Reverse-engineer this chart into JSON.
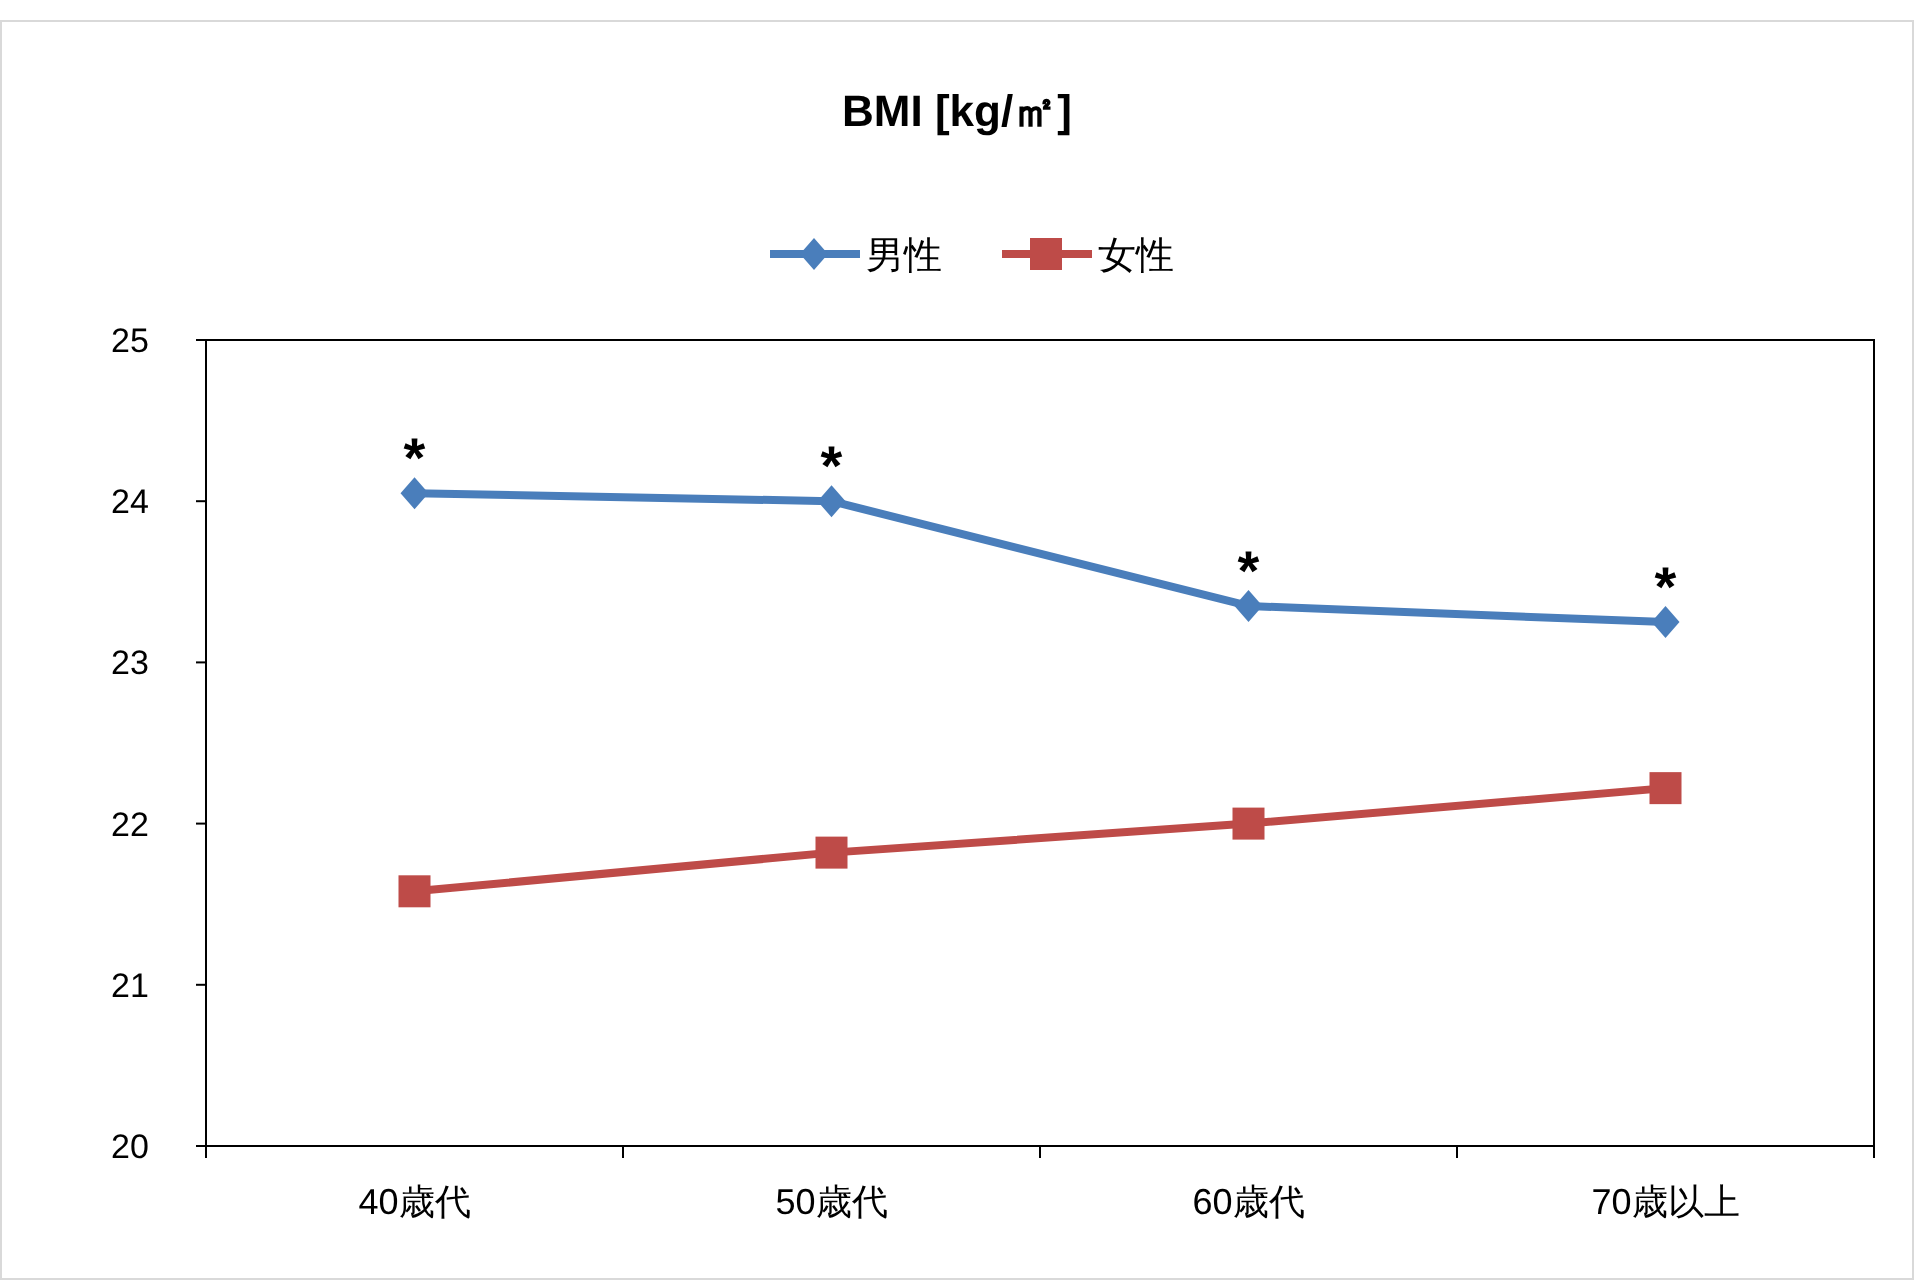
{
  "chart_data": {
    "type": "line",
    "title": "BMI [kg/㎡]",
    "categories": [
      "40歳代",
      "50歳代",
      "60歳代",
      "70歳以上"
    ],
    "series": [
      {
        "name": "男性",
        "color": "#4a7ebb",
        "marker": "diamond",
        "values": [
          24.05,
          24.0,
          23.35,
          23.25
        ]
      },
      {
        "name": "女性",
        "color": "#be4b48",
        "marker": "square",
        "values": [
          21.58,
          21.82,
          22.0,
          22.22
        ]
      }
    ],
    "ylim": [
      20,
      25
    ],
    "yticks": [
      20,
      21,
      22,
      23,
      24,
      25
    ],
    "grid": false,
    "legend": "top",
    "annotations": [
      {
        "text": "*",
        "x": "40歳代",
        "y": 24.05
      },
      {
        "text": "*",
        "x": "50歳代",
        "y": 24.0
      },
      {
        "text": "*",
        "x": "60歳代",
        "y": 23.35
      },
      {
        "text": "*",
        "x": "70歳以上",
        "y": 23.25
      }
    ]
  }
}
